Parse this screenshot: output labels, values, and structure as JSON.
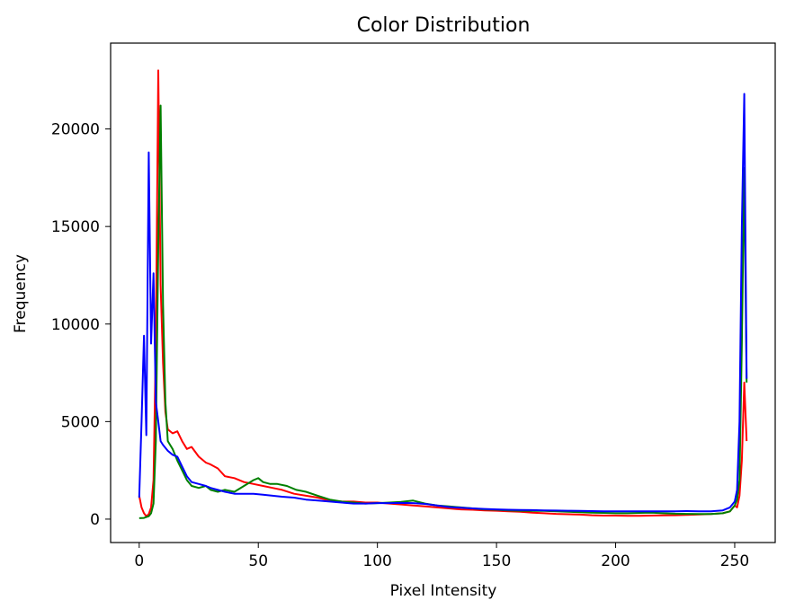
{
  "chart_data": {
    "type": "line",
    "title": "Color Distribution",
    "xlabel": "Pixel Intensity",
    "ylabel": "Frequency",
    "xlim": [
      -12,
      267
    ],
    "ylim": [
      -1200,
      24400
    ],
    "xticks": [
      0,
      50,
      100,
      150,
      200,
      250
    ],
    "yticks": [
      0,
      5000,
      10000,
      15000,
      20000
    ],
    "grid": false,
    "series": [
      {
        "color": "#ff0000",
        "points": [
          [
            0,
            1200
          ],
          [
            1,
            600
          ],
          [
            2,
            300
          ],
          [
            3,
            150
          ],
          [
            4,
            250
          ],
          [
            5,
            600
          ],
          [
            6,
            2000
          ],
          [
            7,
            9000
          ],
          [
            8,
            23000
          ],
          [
            9,
            12000
          ],
          [
            10,
            8000
          ],
          [
            11,
            5500
          ],
          [
            12,
            4600
          ],
          [
            14,
            4400
          ],
          [
            16,
            4500
          ],
          [
            18,
            4000
          ],
          [
            20,
            3600
          ],
          [
            22,
            3700
          ],
          [
            25,
            3200
          ],
          [
            28,
            2900
          ],
          [
            30,
            2800
          ],
          [
            33,
            2600
          ],
          [
            36,
            2200
          ],
          [
            40,
            2100
          ],
          [
            44,
            1900
          ],
          [
            48,
            1800
          ],
          [
            52,
            1700
          ],
          [
            56,
            1600
          ],
          [
            60,
            1500
          ],
          [
            65,
            1300
          ],
          [
            70,
            1200
          ],
          [
            75,
            1100
          ],
          [
            80,
            950
          ],
          [
            85,
            900
          ],
          [
            90,
            900
          ],
          [
            95,
            850
          ],
          [
            100,
            850
          ],
          [
            105,
            800
          ],
          [
            110,
            750
          ],
          [
            115,
            700
          ],
          [
            120,
            650
          ],
          [
            125,
            600
          ],
          [
            130,
            550
          ],
          [
            135,
            500
          ],
          [
            140,
            480
          ],
          [
            145,
            450
          ],
          [
            150,
            430
          ],
          [
            155,
            400
          ],
          [
            160,
            380
          ],
          [
            165,
            330
          ],
          [
            170,
            300
          ],
          [
            175,
            270
          ],
          [
            180,
            250
          ],
          [
            185,
            230
          ],
          [
            190,
            200
          ],
          [
            195,
            180
          ],
          [
            200,
            180
          ],
          [
            205,
            170
          ],
          [
            210,
            170
          ],
          [
            215,
            180
          ],
          [
            220,
            190
          ],
          [
            225,
            200
          ],
          [
            230,
            220
          ],
          [
            235,
            240
          ],
          [
            240,
            260
          ],
          [
            245,
            300
          ],
          [
            248,
            400
          ],
          [
            250,
            700
          ],
          [
            251,
            600
          ],
          [
            252,
            1200
          ],
          [
            253,
            3000
          ],
          [
            254,
            7000
          ],
          [
            255,
            4000
          ]
        ]
      },
      {
        "color": "#008000",
        "points": [
          [
            0,
            50
          ],
          [
            2,
            60
          ],
          [
            4,
            150
          ],
          [
            5,
            300
          ],
          [
            6,
            800
          ],
          [
            7,
            4000
          ],
          [
            8,
            14000
          ],
          [
            9,
            21200
          ],
          [
            10,
            11000
          ],
          [
            11,
            6000
          ],
          [
            12,
            4000
          ],
          [
            14,
            3600
          ],
          [
            16,
            3000
          ],
          [
            18,
            2500
          ],
          [
            20,
            2000
          ],
          [
            22,
            1700
          ],
          [
            25,
            1600
          ],
          [
            28,
            1700
          ],
          [
            30,
            1500
          ],
          [
            33,
            1400
          ],
          [
            36,
            1500
          ],
          [
            40,
            1400
          ],
          [
            44,
            1700
          ],
          [
            48,
            2000
          ],
          [
            50,
            2100
          ],
          [
            52,
            1900
          ],
          [
            55,
            1800
          ],
          [
            58,
            1800
          ],
          [
            62,
            1700
          ],
          [
            66,
            1500
          ],
          [
            70,
            1400
          ],
          [
            75,
            1200
          ],
          [
            80,
            1000
          ],
          [
            85,
            900
          ],
          [
            90,
            850
          ],
          [
            95,
            800
          ],
          [
            100,
            820
          ],
          [
            105,
            850
          ],
          [
            110,
            880
          ],
          [
            115,
            950
          ],
          [
            120,
            800
          ],
          [
            125,
            700
          ],
          [
            130,
            650
          ],
          [
            135,
            600
          ],
          [
            140,
            550
          ],
          [
            145,
            500
          ],
          [
            150,
            480
          ],
          [
            155,
            450
          ],
          [
            160,
            430
          ],
          [
            165,
            420
          ],
          [
            170,
            420
          ],
          [
            175,
            400
          ],
          [
            180,
            380
          ],
          [
            185,
            350
          ],
          [
            190,
            330
          ],
          [
            195,
            320
          ],
          [
            200,
            300
          ],
          [
            205,
            300
          ],
          [
            210,
            320
          ],
          [
            215,
            330
          ],
          [
            220,
            300
          ],
          [
            225,
            280
          ],
          [
            230,
            270
          ],
          [
            235,
            260
          ],
          [
            240,
            260
          ],
          [
            245,
            300
          ],
          [
            248,
            400
          ],
          [
            250,
            700
          ],
          [
            251,
            1000
          ],
          [
            252,
            2000
          ],
          [
            253,
            9000
          ],
          [
            254,
            18000
          ],
          [
            255,
            7000
          ]
        ]
      },
      {
        "color": "#0000ff",
        "points": [
          [
            0,
            1100
          ],
          [
            1,
            5000
          ],
          [
            2,
            9400
          ],
          [
            3,
            4300
          ],
          [
            4,
            18800
          ],
          [
            5,
            9000
          ],
          [
            6,
            12600
          ],
          [
            7,
            6000
          ],
          [
            8,
            5000
          ],
          [
            9,
            4000
          ],
          [
            10,
            3800
          ],
          [
            12,
            3500
          ],
          [
            14,
            3300
          ],
          [
            16,
            3200
          ],
          [
            18,
            2700
          ],
          [
            20,
            2200
          ],
          [
            22,
            1900
          ],
          [
            25,
            1800
          ],
          [
            28,
            1700
          ],
          [
            30,
            1600
          ],
          [
            33,
            1500
          ],
          [
            36,
            1400
          ],
          [
            40,
            1300
          ],
          [
            44,
            1300
          ],
          [
            48,
            1300
          ],
          [
            52,
            1250
          ],
          [
            56,
            1200
          ],
          [
            60,
            1150
          ],
          [
            65,
            1100
          ],
          [
            70,
            1000
          ],
          [
            75,
            950
          ],
          [
            80,
            900
          ],
          [
            85,
            850
          ],
          [
            90,
            800
          ],
          [
            95,
            800
          ],
          [
            100,
            820
          ],
          [
            105,
            820
          ],
          [
            110,
            830
          ],
          [
            115,
            820
          ],
          [
            120,
            780
          ],
          [
            125,
            700
          ],
          [
            130,
            620
          ],
          [
            135,
            580
          ],
          [
            140,
            550
          ],
          [
            145,
            520
          ],
          [
            150,
            500
          ],
          [
            155,
            480
          ],
          [
            160,
            470
          ],
          [
            165,
            460
          ],
          [
            170,
            450
          ],
          [
            175,
            440
          ],
          [
            180,
            430
          ],
          [
            185,
            420
          ],
          [
            190,
            410
          ],
          [
            195,
            400
          ],
          [
            200,
            400
          ],
          [
            205,
            400
          ],
          [
            210,
            400
          ],
          [
            215,
            400
          ],
          [
            220,
            400
          ],
          [
            225,
            400
          ],
          [
            230,
            410
          ],
          [
            235,
            400
          ],
          [
            240,
            400
          ],
          [
            245,
            450
          ],
          [
            248,
            600
          ],
          [
            250,
            900
          ],
          [
            251,
            1500
          ],
          [
            252,
            5000
          ],
          [
            253,
            15000
          ],
          [
            254,
            21800
          ],
          [
            255,
            7200
          ]
        ]
      }
    ]
  }
}
